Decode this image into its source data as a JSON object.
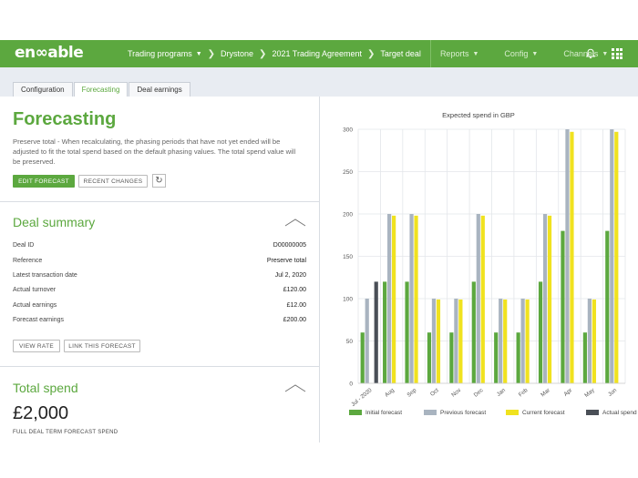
{
  "header": {
    "logo": "en∞able",
    "breadcrumbs": [
      "Trading programs",
      "Drystone",
      "2021 Trading Agreement",
      "Target deal"
    ],
    "nav": [
      "Reports",
      "Config",
      "Channels"
    ]
  },
  "tabs": [
    "Configuration",
    "Forecasting",
    "Deal earnings"
  ],
  "forecasting": {
    "title": "Forecasting",
    "description": "Preserve total - When recalculating, the phasing periods that have not yet ended will be adjusted to fit the total spend based on the default phasing values. The total spend value will be preserved.",
    "edit_button": "EDIT FORECAST",
    "recent_button": "RECENT CHANGES"
  },
  "deal_summary": {
    "title": "Deal summary",
    "rows": [
      {
        "label": "Deal ID",
        "value": "D00000005"
      },
      {
        "label": "Reference",
        "value": "Preserve total"
      },
      {
        "label": "Latest transaction date",
        "value": "Jul 2, 2020"
      },
      {
        "label": "Actual turnover",
        "value": "£120.00"
      },
      {
        "label": "Actual earnings",
        "value": "£12.00"
      },
      {
        "label": "Forecast earnings",
        "value": "£200.00"
      }
    ],
    "view_rate": "VIEW RATE",
    "link_forecast": "LINK THIS FORECAST"
  },
  "total_spend": {
    "title": "Total spend",
    "amount": "£2,000",
    "caption": "FULL DEAL TERM FORECAST SPEND"
  },
  "chart_data": {
    "type": "bar",
    "title": "Expected spend in GBP",
    "categories": [
      "Jul - 2020",
      "Aug",
      "Sep",
      "Oct",
      "Nov",
      "Dec",
      "Jan",
      "Feb",
      "Mar",
      "Apr",
      "May",
      "Jun"
    ],
    "ylim": [
      0,
      300
    ],
    "yticks": [
      0,
      50,
      100,
      150,
      200,
      250,
      300
    ],
    "grid": true,
    "legend_position": "bottom",
    "series": [
      {
        "name": "Initial forecast",
        "color": "#5ca83f",
        "values": [
          60,
          120,
          120,
          60,
          60,
          120,
          60,
          60,
          120,
          180,
          60,
          180
        ]
      },
      {
        "name": "Previous forecast",
        "color": "#a9b4c0",
        "values": [
          100,
          200,
          200,
          100,
          100,
          200,
          100,
          100,
          200,
          300,
          100,
          300
        ]
      },
      {
        "name": "Current forecast",
        "color": "#f0e21f",
        "values": [
          0,
          198,
          198,
          99,
          99,
          198,
          99,
          99,
          198,
          297,
          99,
          297
        ]
      },
      {
        "name": "Actual spend",
        "color": "#4a4f57",
        "values": [
          120,
          0,
          0,
          0,
          0,
          0,
          0,
          0,
          0,
          0,
          0,
          0
        ]
      }
    ]
  }
}
